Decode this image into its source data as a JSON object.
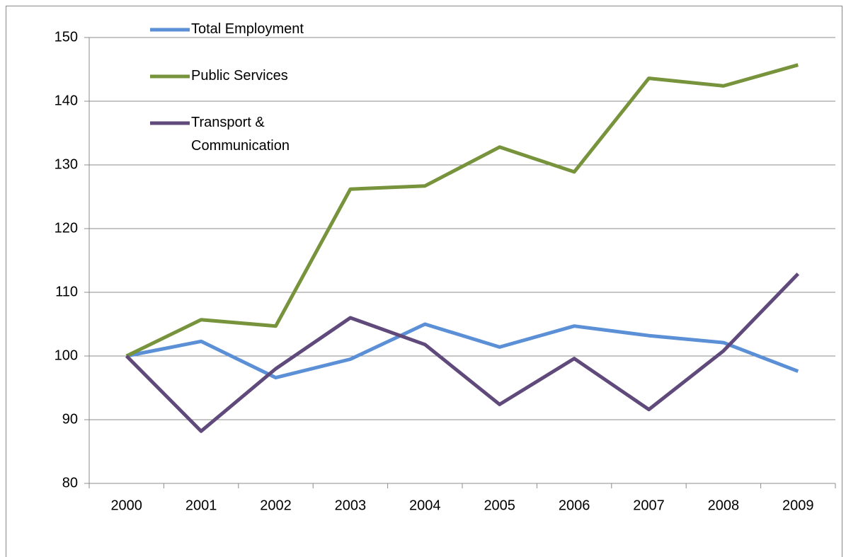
{
  "chart_data": {
    "type": "line",
    "categories": [
      "2000",
      "2001",
      "2002",
      "2003",
      "2004",
      "2005",
      "2006",
      "2007",
      "2008",
      "2009"
    ],
    "series": [
      {
        "name": "Total Employment",
        "color": "#5b8fd6",
        "values": [
          100,
          102.3,
          96.6,
          99.5,
          105,
          101.4,
          104.7,
          103.2,
          102.1,
          97.6
        ]
      },
      {
        "name": "Public Services",
        "color": "#77933c",
        "values": [
          100,
          105.7,
          104.7,
          126.2,
          126.7,
          132.8,
          128.9,
          143.6,
          142.4,
          145.7
        ]
      },
      {
        "name": "Transport & Communication",
        "color": "#604a7b",
        "values": [
          100,
          88.2,
          98,
          106,
          101.8,
          92.4,
          99.6,
          91.6,
          100.8,
          112.9
        ]
      }
    ],
    "ylim": [
      80,
      150
    ],
    "yticks": [
      80,
      90,
      100,
      110,
      120,
      130,
      140,
      150
    ],
    "grid": true,
    "legend": "top-left"
  }
}
